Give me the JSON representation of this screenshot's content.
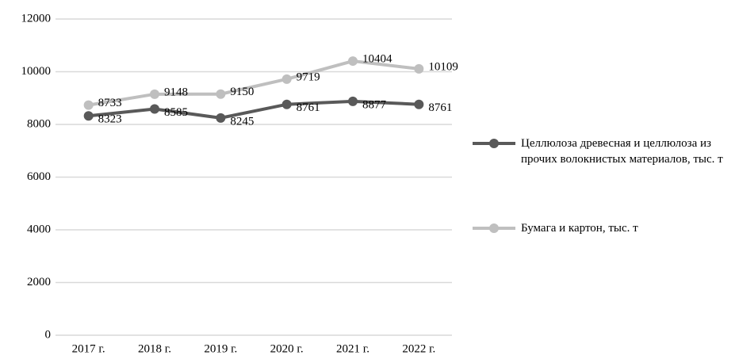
{
  "chart_data": {
    "type": "line",
    "categories": [
      "2017 г.",
      "2018 г.",
      "2019 г.",
      "2020 г.",
      "2021 г.",
      "2022 г."
    ],
    "series": [
      {
        "name": "Целлюлоза древесная и целлюлоза из прочих волокнистых материалов, тыс. т",
        "color": "#595959",
        "values": [
          8323,
          8585,
          8245,
          8761,
          8877,
          8761
        ]
      },
      {
        "name": "Бумага и картон, тыс. т",
        "color": "#bfbfbf",
        "values": [
          8733,
          9148,
          9150,
          9719,
          10404,
          10109
        ]
      }
    ],
    "ylim": [
      0,
      12000
    ],
    "yticks": [
      0,
      2000,
      4000,
      6000,
      8000,
      10000,
      12000
    ],
    "grid": true,
    "legend": "right"
  }
}
